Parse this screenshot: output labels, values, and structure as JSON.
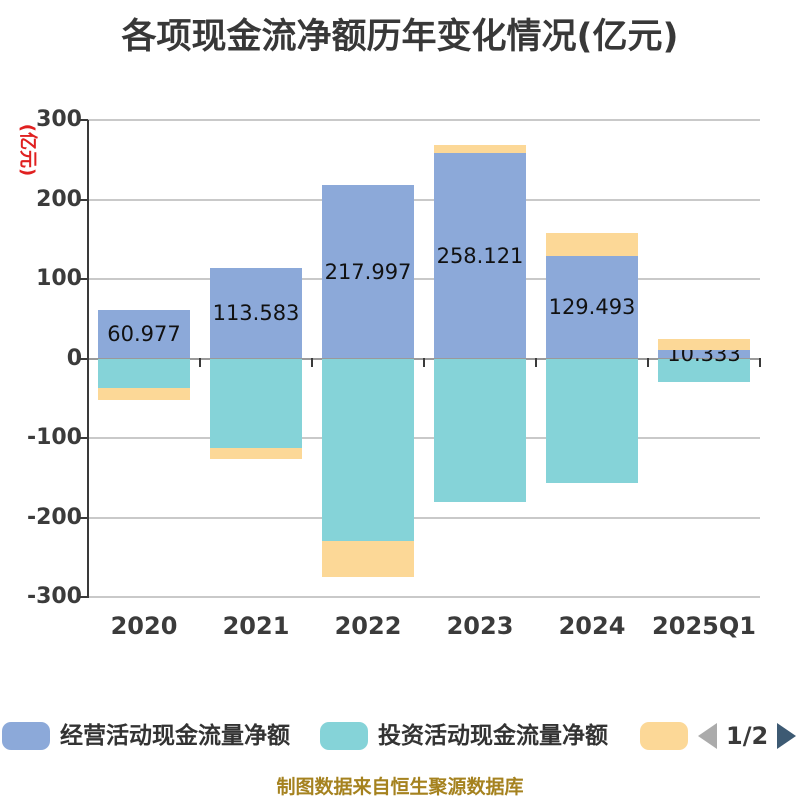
{
  "title": "各项现金流净额历年变化情况(亿元)",
  "y_axis": {
    "name": "(亿元)",
    "ticks": [
      300,
      200,
      100,
      0,
      -100,
      -200,
      -300
    ]
  },
  "chart_data": {
    "type": "bar",
    "stacked": true,
    "categories": [
      "2020",
      "2021",
      "2022",
      "2023",
      "2024",
      "2025Q1"
    ],
    "series": [
      {
        "name": "经营活动现金流量净额",
        "color": "#8CA9D9",
        "values": [
          60.977,
          113.583,
          217.997,
          258.121,
          129.493,
          10.333
        ],
        "data_labels": [
          "60.977",
          "113.583",
          "217.997",
          "258.121",
          "129.493",
          "10.333"
        ]
      },
      {
        "name": "投资活动现金流量净额",
        "color": "#85D3D8",
        "values": [
          -36.7,
          -112.2,
          -229.6,
          -180.1,
          -157.0,
          -29.9
        ]
      },
      {
        "name": "",
        "color": "#FCD897",
        "values": [
          -15.8,
          -14.2,
          -44.9,
          10.5,
          28.0,
          13.8
        ]
      }
    ],
    "title": "各项现金流净额历年变化情况(亿元)",
    "ylabel": "(亿元)",
    "ylim": [
      -300,
      300
    ],
    "grid": true,
    "legend_position": "bottom"
  },
  "legend": {
    "items": [
      {
        "label": "经营活动现金流量净额",
        "color": "#8CA9D9"
      },
      {
        "label": "投资活动现金流量净额",
        "color": "#85D3D8"
      },
      {
        "label": "",
        "color": "#FCD897"
      }
    ],
    "page": "1/2"
  },
  "footer": "制图数据来自恒生聚源数据库",
  "colors": {
    "background": "#FFFFFF",
    "gridline": "#C9C9C9",
    "axis": "#3A3A3A",
    "zero_line": "#9A9A9A",
    "title_text": "#383838",
    "tick_label": "#3B3B3B",
    "bar_value_label": "#111111",
    "y_axis_name": "#E02020",
    "footer_text": "#A5821F",
    "pager_prev": "#ABABAB",
    "pager_next": "#3D5A73"
  }
}
